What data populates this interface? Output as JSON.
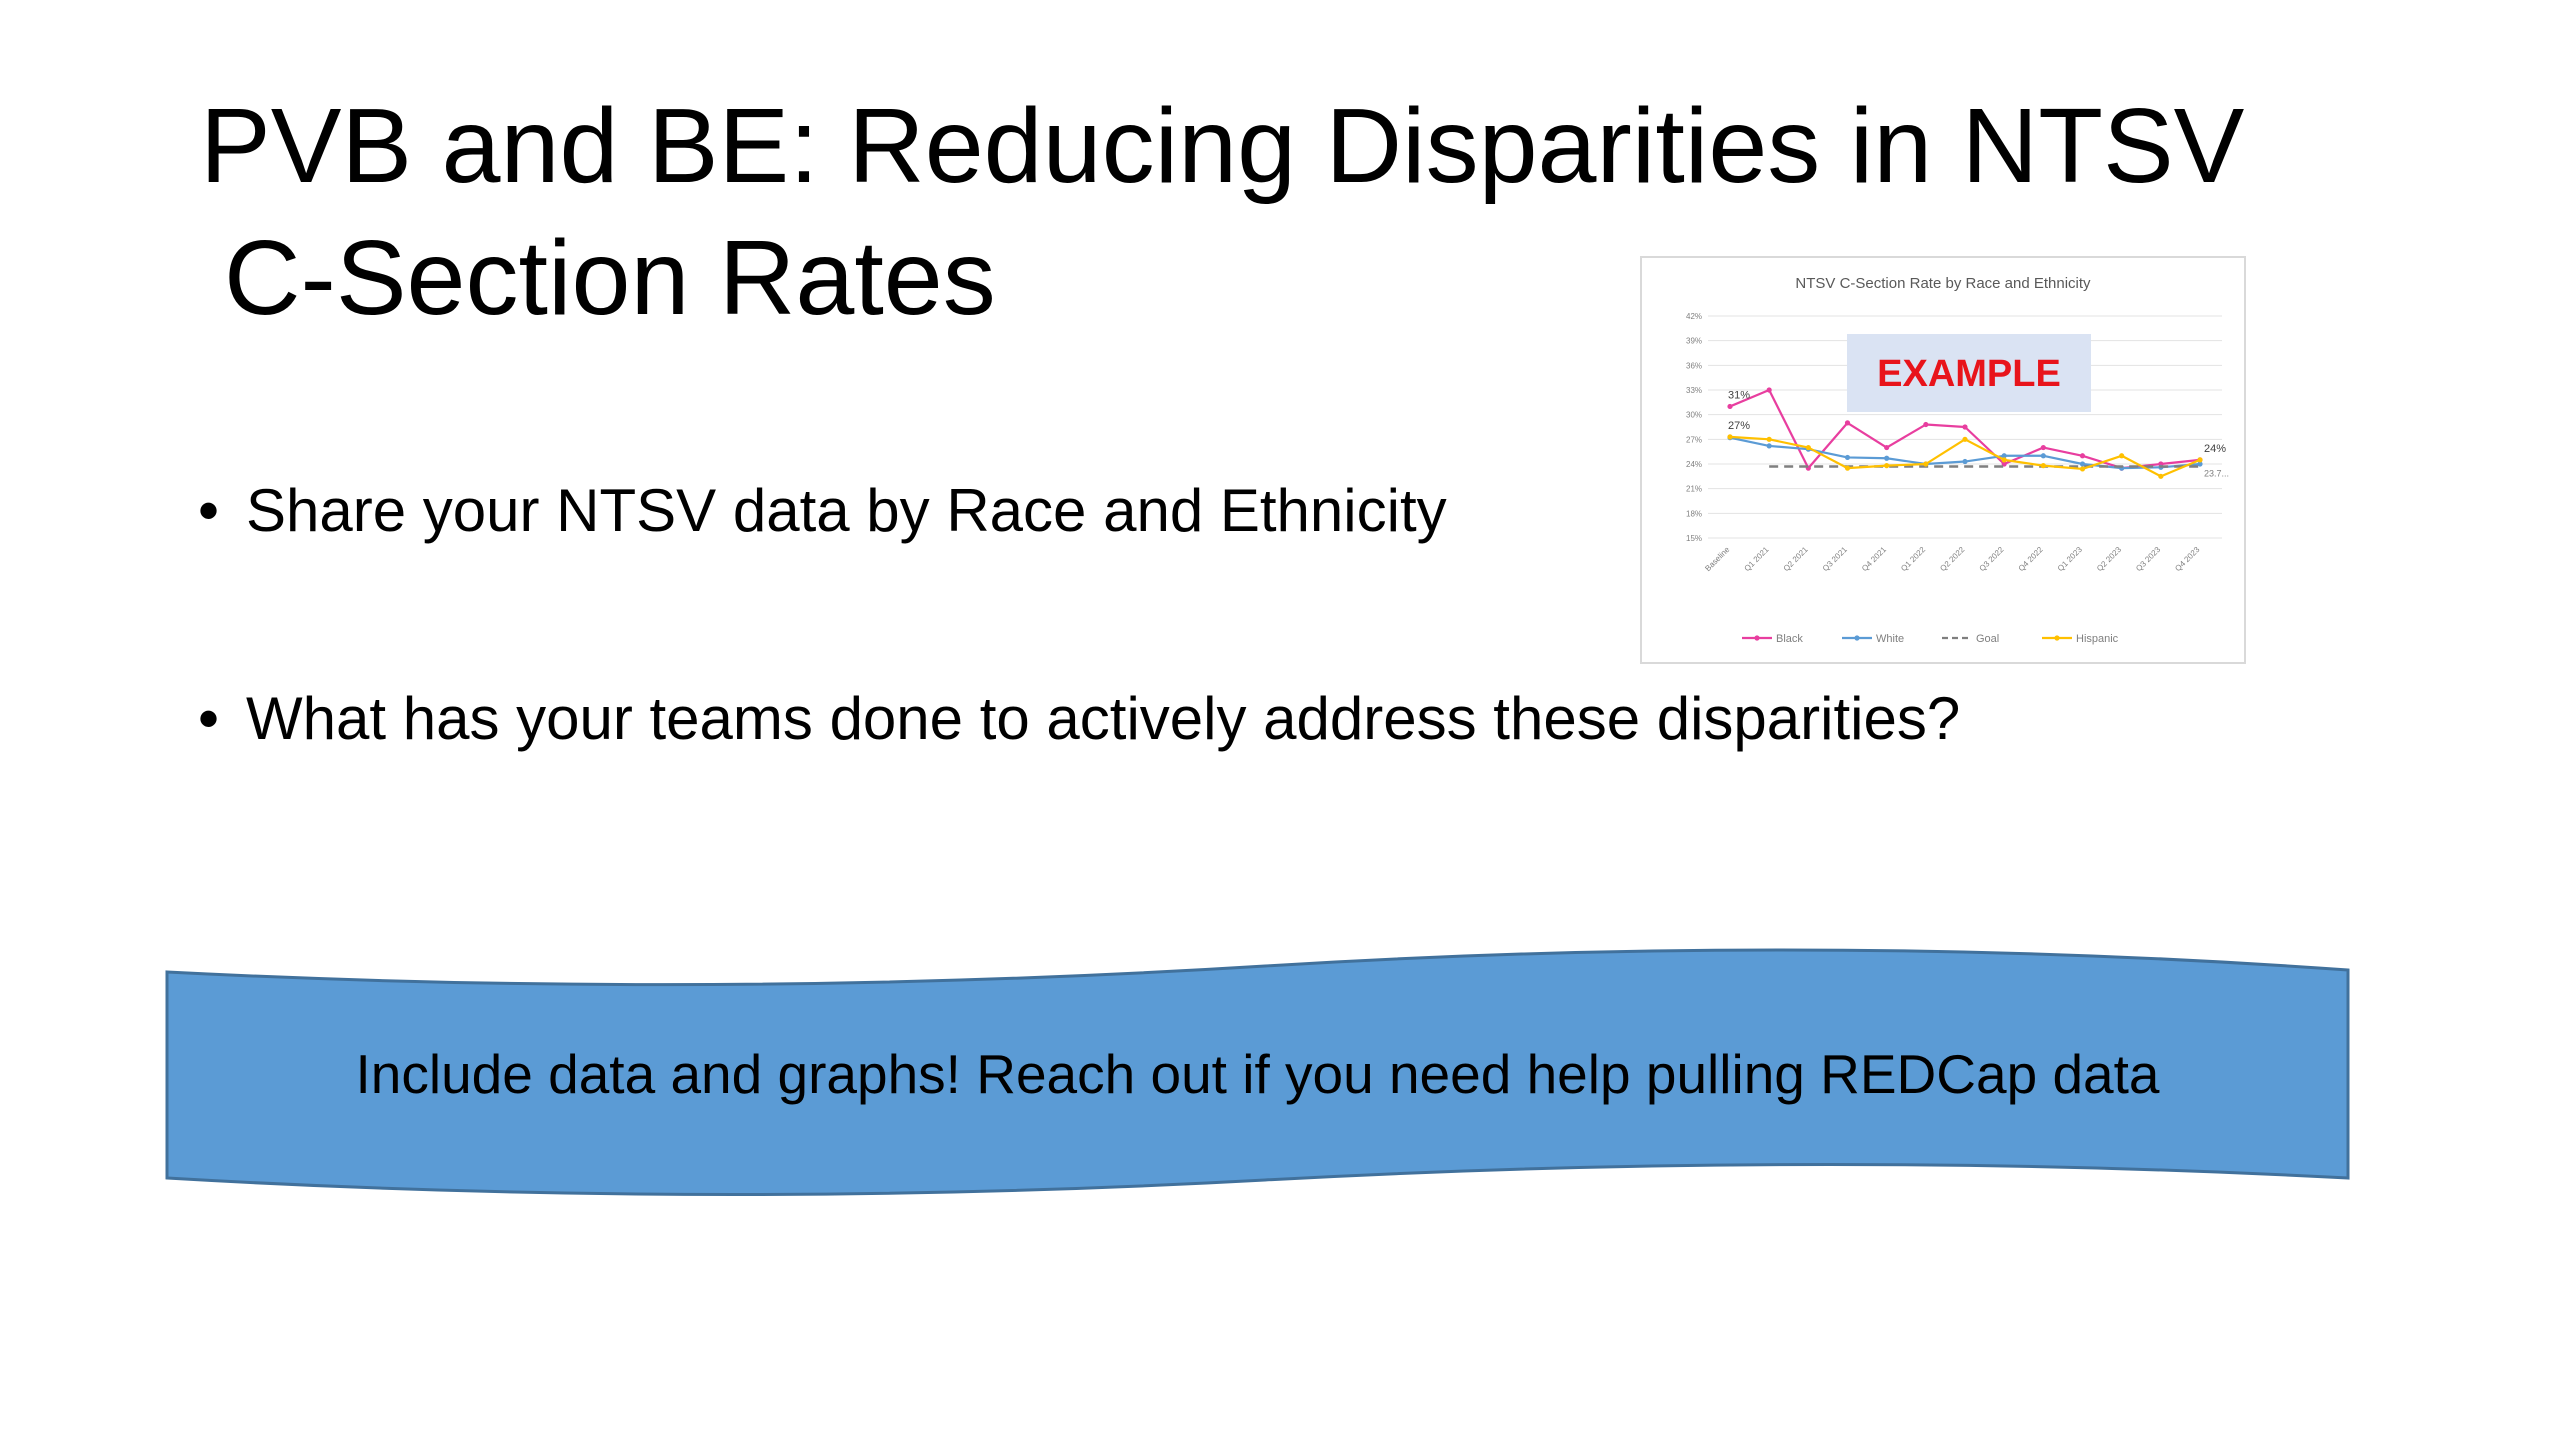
{
  "slide": {
    "title_line1": "PVB and BE: Reducing Disparities in NTSV",
    "title_line2": "C-Section Rates",
    "bullets": [
      "Share your NTSV data by Race and Ethnicity",
      "What has your teams done to actively address these disparities?"
    ],
    "bullet_glyph": "•",
    "banner_text": "Include data and graphs! Reach out if you need help pulling REDCap data",
    "banner_color": "#5b9bd5"
  },
  "chart_data": {
    "type": "line",
    "title": "NTSV C-Section Rate by Race and Ethnicity",
    "watermark": "EXAMPLE",
    "watermark_color": "#e8141b",
    "categories": [
      "Baseline",
      "Q1 2021",
      "Q2 2021",
      "Q3 2021",
      "Q4 2021",
      "Q1 2022",
      "Q2 2022",
      "Q3 2022",
      "Q4 2022",
      "Q1 2023",
      "Q2 2023",
      "Q3 2023",
      "Q4 2023"
    ],
    "y_ticks": [
      "15%",
      "18%",
      "21%",
      "24%",
      "27%",
      "30%",
      "33%",
      "36%",
      "39%",
      "42%"
    ],
    "ylim": [
      15,
      42
    ],
    "grid": true,
    "legend_position": "bottom",
    "series": [
      {
        "name": "Black",
        "color": "#e83e9f",
        "values": [
          31,
          33,
          23.5,
          29,
          26,
          28.8,
          28.5,
          24,
          26,
          25,
          23.5,
          24,
          24.5
        ],
        "first_label": "31%",
        "last_label": "24%"
      },
      {
        "name": "White",
        "color": "#5b9bd5",
        "values": [
          27.2,
          26.2,
          25.8,
          24.8,
          24.7,
          24,
          24.3,
          25,
          25,
          24,
          23.5,
          23.6,
          24
        ]
      },
      {
        "name": "Goal",
        "color": "#7f7f7f",
        "dashed": true,
        "values": [
          null,
          23.7,
          23.7,
          23.7,
          23.7,
          23.7,
          23.7,
          23.7,
          23.7,
          23.7,
          23.7,
          23.7,
          23.7
        ],
        "last_label": "23.7..."
      },
      {
        "name": "Hispanic",
        "color": "#ffc000",
        "values": [
          27.3,
          27,
          26,
          23.5,
          23.8,
          24,
          27,
          24.5,
          23.8,
          23.4,
          25,
          22.5,
          24.5
        ],
        "first_label": "27%"
      }
    ]
  }
}
